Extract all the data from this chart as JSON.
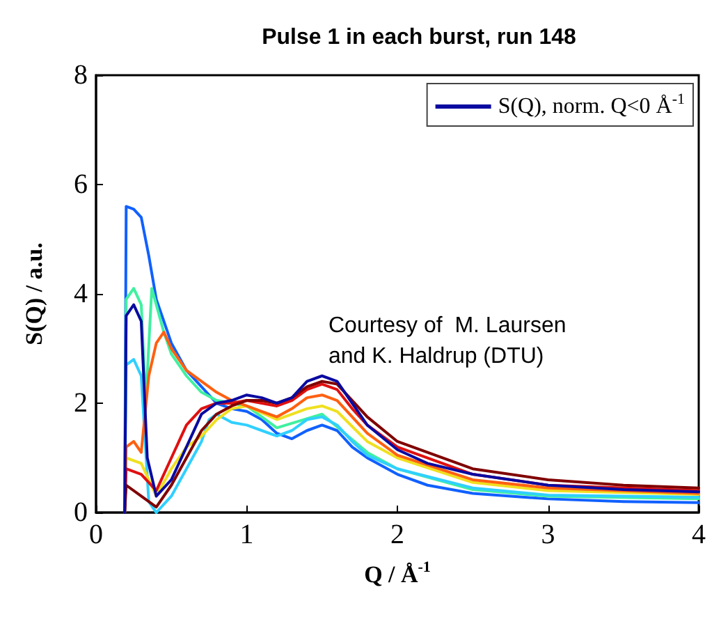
{
  "chart_data": {
    "type": "line",
    "title": "Pulse 1 in each burst, run 148",
    "xlabel": "Q / Å$^{-1}$",
    "ylabel": "S(Q) / a.u.",
    "xlim": [
      0,
      4
    ],
    "ylim": [
      0,
      8
    ],
    "xticks": [
      0,
      1,
      2,
      3,
      4
    ],
    "yticks": [
      0,
      2,
      4,
      6,
      8
    ],
    "grid": false,
    "legend": "top right",
    "marker": "none",
    "line_style": "solid",
    "annotations": [
      "Courtesy of  M. Laursen\nand K. Haldrup (DTU)"
    ],
    "series": [
      {
        "color": "#1060ff",
        "x": [
          0.19,
          0.2,
          0.25,
          0.3,
          0.35,
          0.4,
          0.5,
          0.6,
          0.7,
          0.8,
          0.9,
          1.0,
          1.1,
          1.2,
          1.3,
          1.4,
          1.5,
          1.6,
          1.7,
          1.8,
          2.0,
          2.2,
          2.5,
          3.0,
          3.5,
          4.0
        ],
        "values": [
          0,
          5.6,
          5.55,
          5.4,
          4.7,
          3.9,
          3.1,
          2.6,
          2.3,
          2.0,
          1.9,
          1.85,
          1.7,
          1.45,
          1.35,
          1.5,
          1.6,
          1.5,
          1.2,
          1.0,
          0.7,
          0.5,
          0.35,
          0.25,
          0.2,
          0.18
        ]
      },
      {
        "color": "#40f0a0",
        "x": [
          0.19,
          0.2,
          0.25,
          0.3,
          0.33,
          0.37,
          0.45,
          0.5,
          0.6,
          0.7,
          0.8,
          0.9,
          1.0,
          1.2,
          1.5,
          1.8,
          2.0,
          2.5,
          3.0,
          4.0
        ],
        "values": [
          0,
          3.9,
          4.1,
          3.8,
          2.0,
          4.1,
          3.3,
          2.9,
          2.5,
          2.2,
          2.05,
          2.0,
          1.95,
          1.55,
          1.8,
          1.1,
          0.8,
          0.42,
          0.3,
          0.25
        ]
      },
      {
        "name": "S(Q), norm. Q<0 Å$^{-1}$",
        "color": "#0a0aa0",
        "x": [
          0.19,
          0.2,
          0.25,
          0.3,
          0.34,
          0.4,
          0.5,
          0.6,
          0.7,
          0.8,
          0.9,
          1.0,
          1.1,
          1.2,
          1.3,
          1.4,
          1.5,
          1.6,
          1.7,
          1.8,
          2.0,
          2.2,
          2.5,
          3.0,
          3.5,
          4.0
        ],
        "values": [
          0,
          3.6,
          3.8,
          3.5,
          1.0,
          0.3,
          0.6,
          1.2,
          1.8,
          2.0,
          2.05,
          2.15,
          2.1,
          2.0,
          2.1,
          2.4,
          2.5,
          2.4,
          2.0,
          1.6,
          1.15,
          0.9,
          0.7,
          0.5,
          0.42,
          0.38
        ]
      },
      {
        "color": "#30d0ff",
        "x": [
          0.19,
          0.2,
          0.25,
          0.3,
          0.35,
          0.4,
          0.5,
          0.6,
          0.7,
          0.75,
          0.8,
          0.9,
          1.0,
          1.1,
          1.2,
          1.3,
          1.4,
          1.5,
          1.6,
          1.7,
          1.8,
          2.0,
          2.5,
          3.0,
          4.0
        ],
        "values": [
          0,
          2.7,
          2.8,
          2.5,
          0.2,
          0,
          0.3,
          0.8,
          1.3,
          1.7,
          1.8,
          1.65,
          1.6,
          1.5,
          1.4,
          1.5,
          1.7,
          1.75,
          1.6,
          1.3,
          1.05,
          0.8,
          0.45,
          0.32,
          0.28
        ]
      },
      {
        "color": "#f0e020",
        "x": [
          0.19,
          0.2,
          0.3,
          0.4,
          0.5,
          0.6,
          0.7,
          0.8,
          0.9,
          1.0,
          1.2,
          1.4,
          1.5,
          1.6,
          1.8,
          2.0,
          2.5,
          3.0,
          4.0
        ],
        "values": [
          0,
          1.0,
          0.9,
          0.3,
          0.8,
          1.2,
          1.4,
          1.7,
          1.9,
          1.95,
          1.7,
          1.9,
          1.95,
          1.85,
          1.3,
          1.0,
          0.55,
          0.4,
          0.33
        ]
      },
      {
        "color": "#ff6010",
        "x": [
          0.19,
          0.2,
          0.25,
          0.3,
          0.35,
          0.4,
          0.45,
          0.5,
          0.6,
          0.7,
          0.8,
          0.9,
          1.0,
          1.1,
          1.2,
          1.3,
          1.4,
          1.5,
          1.6,
          1.7,
          1.8,
          2.0,
          2.5,
          3.0,
          4.0
        ],
        "values": [
          0,
          1.2,
          1.3,
          1.1,
          2.5,
          3.1,
          3.3,
          3.0,
          2.6,
          2.4,
          2.2,
          2.05,
          1.95,
          1.85,
          1.75,
          1.9,
          2.1,
          2.15,
          2.05,
          1.75,
          1.45,
          1.05,
          0.6,
          0.45,
          0.35
        ]
      },
      {
        "color": "#e01010",
        "x": [
          0.19,
          0.2,
          0.3,
          0.4,
          0.5,
          0.6,
          0.7,
          0.8,
          0.9,
          1.0,
          1.1,
          1.2,
          1.3,
          1.4,
          1.5,
          1.6,
          1.7,
          1.8,
          2.0,
          2.5,
          3.0,
          4.0
        ],
        "values": [
          0,
          0.8,
          0.7,
          0.4,
          1.0,
          1.6,
          1.9,
          2.0,
          2.0,
          2.05,
          2.0,
          1.95,
          2.05,
          2.25,
          2.35,
          2.25,
          1.9,
          1.6,
          1.2,
          0.7,
          0.5,
          0.4
        ]
      },
      {
        "color": "#800000",
        "x": [
          0.19,
          0.2,
          0.3,
          0.4,
          0.5,
          0.6,
          0.7,
          0.8,
          0.9,
          1.0,
          1.1,
          1.2,
          1.3,
          1.4,
          1.5,
          1.6,
          1.7,
          1.8,
          2.0,
          2.5,
          3.0,
          3.5,
          4.0
        ],
        "values": [
          0,
          0.5,
          0.3,
          0.1,
          0.5,
          1.0,
          1.5,
          1.8,
          1.95,
          2.05,
          2.05,
          2.0,
          2.1,
          2.3,
          2.4,
          2.35,
          2.05,
          1.75,
          1.3,
          0.8,
          0.6,
          0.5,
          0.45
        ]
      }
    ]
  }
}
